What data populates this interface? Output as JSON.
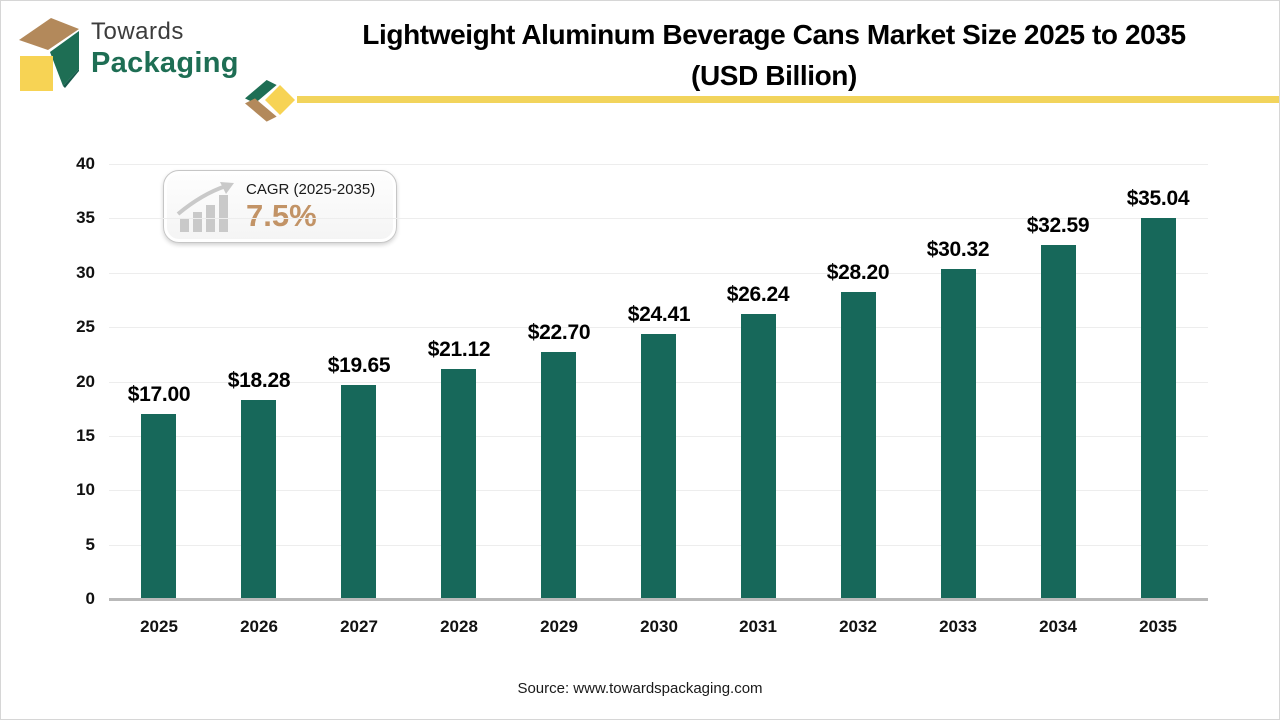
{
  "brand": {
    "line1": "Towards",
    "line2": "Packaging"
  },
  "header": {
    "title_line1": "Lightweight Aluminum Beverage Cans Market Size 2025 to 2035",
    "title_line2": "(USD Billion)"
  },
  "cagr_badge": {
    "icon": "growth-chart-icon",
    "label": "CAGR (2025-2035)",
    "value": "7.5%"
  },
  "chart_data": {
    "type": "bar",
    "title": "Lightweight Aluminum Beverage Cans Market Size 2025 to 2035 (USD Billion)",
    "unit": "USD Billion",
    "categories": [
      "2025",
      "2026",
      "2027",
      "2028",
      "2029",
      "2030",
      "2031",
      "2032",
      "2033",
      "2034",
      "2035"
    ],
    "values": [
      17.0,
      18.28,
      19.65,
      21.12,
      22.7,
      24.41,
      26.24,
      28.2,
      30.32,
      32.59,
      35.04
    ],
    "value_labels": [
      "$17.00",
      "$18.28",
      "$19.65",
      "$21.12",
      "$22.70",
      "$24.41",
      "$26.24",
      "$28.20",
      "$30.32",
      "$32.59",
      "$35.04"
    ],
    "xlabel": "",
    "ylabel": "",
    "ylim": [
      0,
      40
    ],
    "yticks": [
      0,
      5,
      10,
      15,
      20,
      25,
      30,
      35,
      40
    ],
    "grid": true,
    "legend": "none",
    "bar_color": "#17685A"
  },
  "footer": {
    "source": "Source: www.towardspackaging.com"
  },
  "colors": {
    "bar": "#17685A",
    "brand_green": "#1E6E54",
    "brand_dark_green": "#15594A",
    "brand_yellow": "#F7D354",
    "brand_tan": "#B3895B",
    "divider_yellow": "#F2D45C",
    "cagr_gold": "#C29366",
    "gridline": "#EDEDED",
    "axis_line": "#B9B9B9",
    "text": "#111111"
  }
}
